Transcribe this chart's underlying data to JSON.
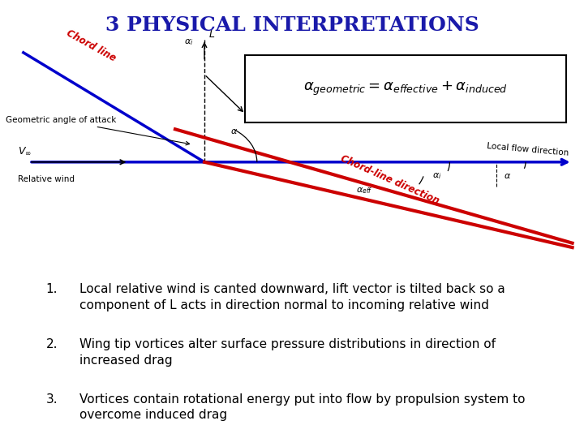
{
  "title": "3 PHYSICAL INTERPRETATIONS",
  "title_color": "#1a1aaa",
  "title_fontsize": 18,
  "bg_color": "#ffffff",
  "bullet_points": [
    [
      "1.",
      "Local relative wind is canted downward, lift vector is tilted back so a\ncomponent of L acts in direction normal to incoming relative wind"
    ],
    [
      "2.",
      "Wing tip vortices alter surface pressure distributions in direction of\nincreased drag"
    ],
    [
      "3.",
      "Vortices contain rotational energy put into flow by propulsion system to\novercome induced drag"
    ]
  ],
  "bullet_fontsize": 11,
  "bullet_color": "#000000",
  "chord_color": "#cc0000",
  "flow_color": "#0000cc",
  "black": "#000000",
  "formula_text": "$\\alpha_{geometric} = \\alpha_{effective} + \\alpha_{induced}$",
  "formula_fontsize": 13
}
